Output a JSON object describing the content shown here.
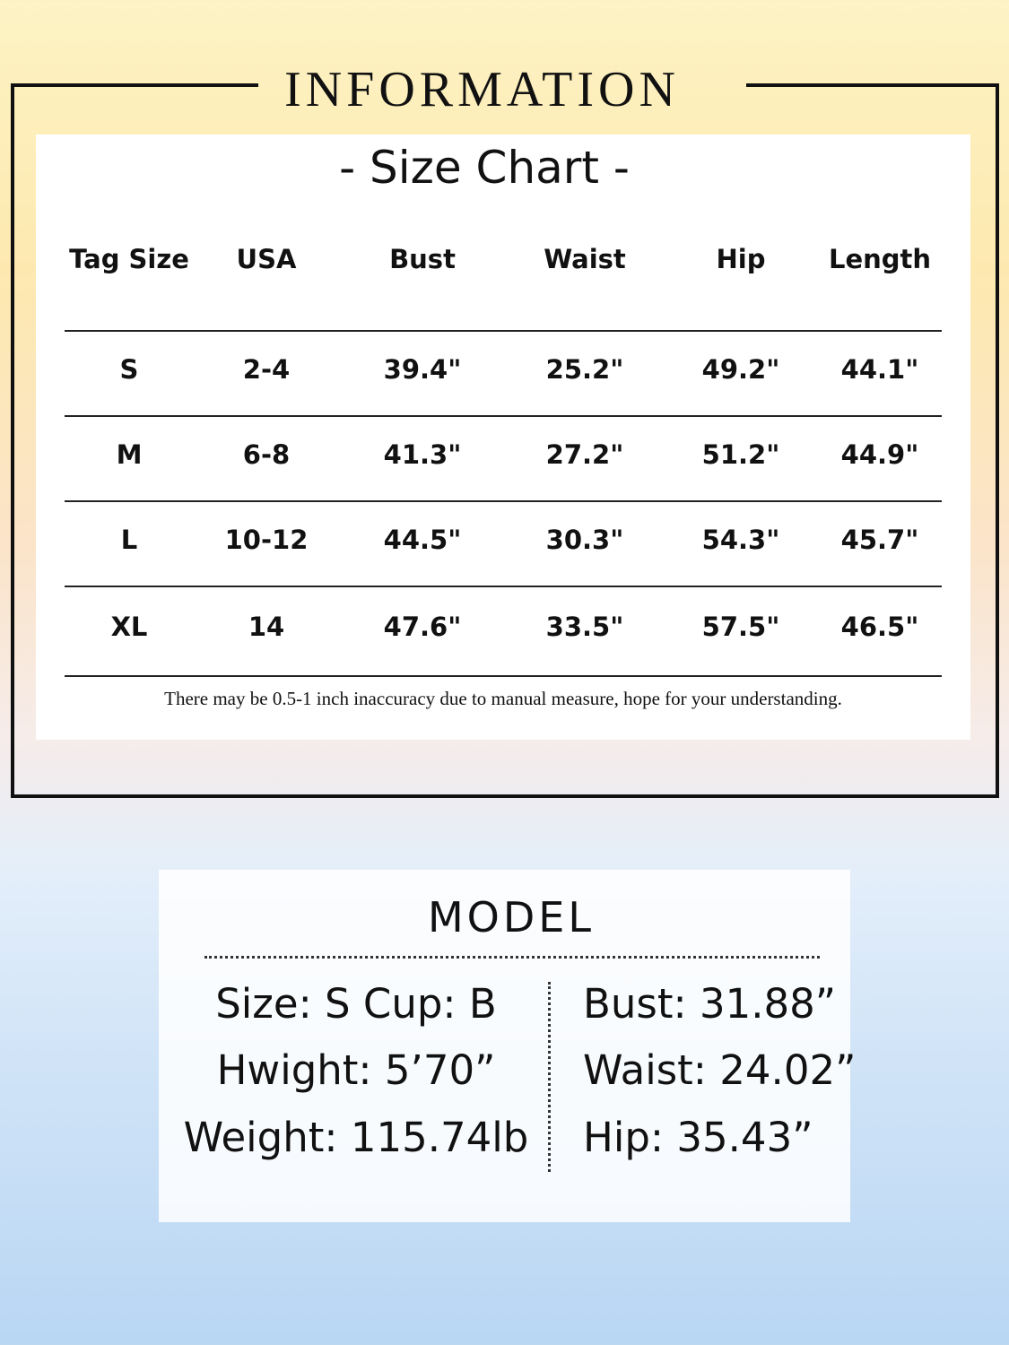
{
  "header": {
    "title": "INFORMATION"
  },
  "size_chart": {
    "title": "- Size Chart -",
    "columns": [
      "Tag Size",
      "USA",
      "Bust",
      "Waist",
      "Hip",
      "Length"
    ],
    "rows": [
      [
        "S",
        "2-4",
        "39.4\"",
        "25.2\"",
        "49.2\"",
        "44.1\""
      ],
      [
        "M",
        "6-8",
        "41.3\"",
        "27.2\"",
        "51.2\"",
        "44.9\""
      ],
      [
        "L",
        "10-12",
        "44.5\"",
        "30.3\"",
        "54.3\"",
        "45.7\""
      ],
      [
        "XL",
        "14",
        "47.6\"",
        "33.5\"",
        "57.5\"",
        "46.5\""
      ]
    ],
    "note": "There may be 0.5-1 inch inaccuracy due to manual measure, hope for your understanding."
  },
  "model": {
    "title": "MODEL",
    "left": [
      "Size: S Cup: B",
      "Hwight: 5’70”",
      "Weight: 115.74lb"
    ],
    "right": [
      "Bust: 31.88”",
      "Waist: 24.02”",
      "Hip: 35.43”"
    ]
  }
}
